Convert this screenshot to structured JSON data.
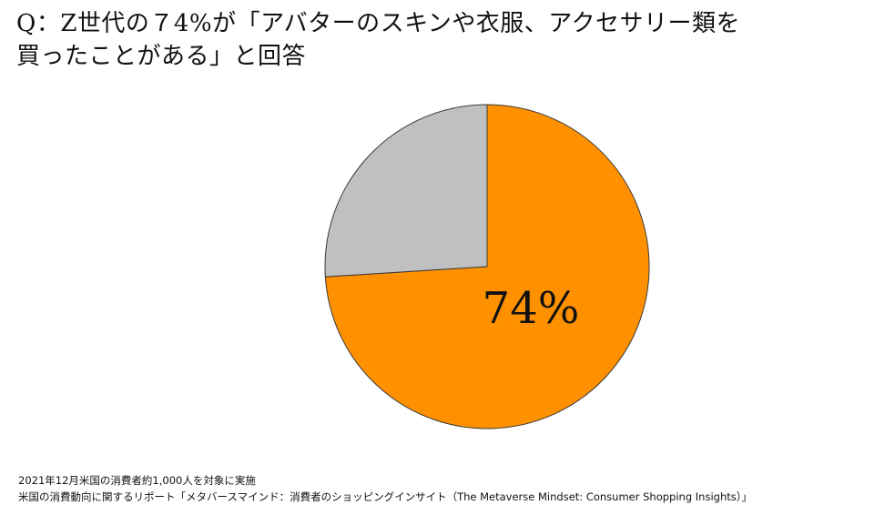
{
  "title": {
    "line1": "Q：Z世代の７4%が「アバターのスキンや衣服、アクセサリー類を",
    "line2": "買ったことがある」と回答"
  },
  "colors": {
    "highlight": "#ff9100",
    "rest": "#c0c0c0",
    "outline": "#3a3a3a"
  },
  "chart_data": {
    "type": "pie",
    "title": "Q：Z世代の７4%が「アバターのスキンや衣服、アクセサリー類を買ったことがある」と回答",
    "slices": [
      {
        "value": 74,
        "color": "#ff9100",
        "label": "74%"
      },
      {
        "value": 26,
        "color": "#c0c0c0",
        "label": ""
      }
    ],
    "start_angle": "12 o'clock",
    "direction": "clockwise"
  },
  "notes": {
    "line1": "2021年12月米国の消費者約1,000人を対象に実施",
    "line2": "米国の消費動向に関するリポート「メタバースマインド：消費者のショッピングインサイト（The Metaverse Mindset: Consumer Shopping Insights）」"
  }
}
